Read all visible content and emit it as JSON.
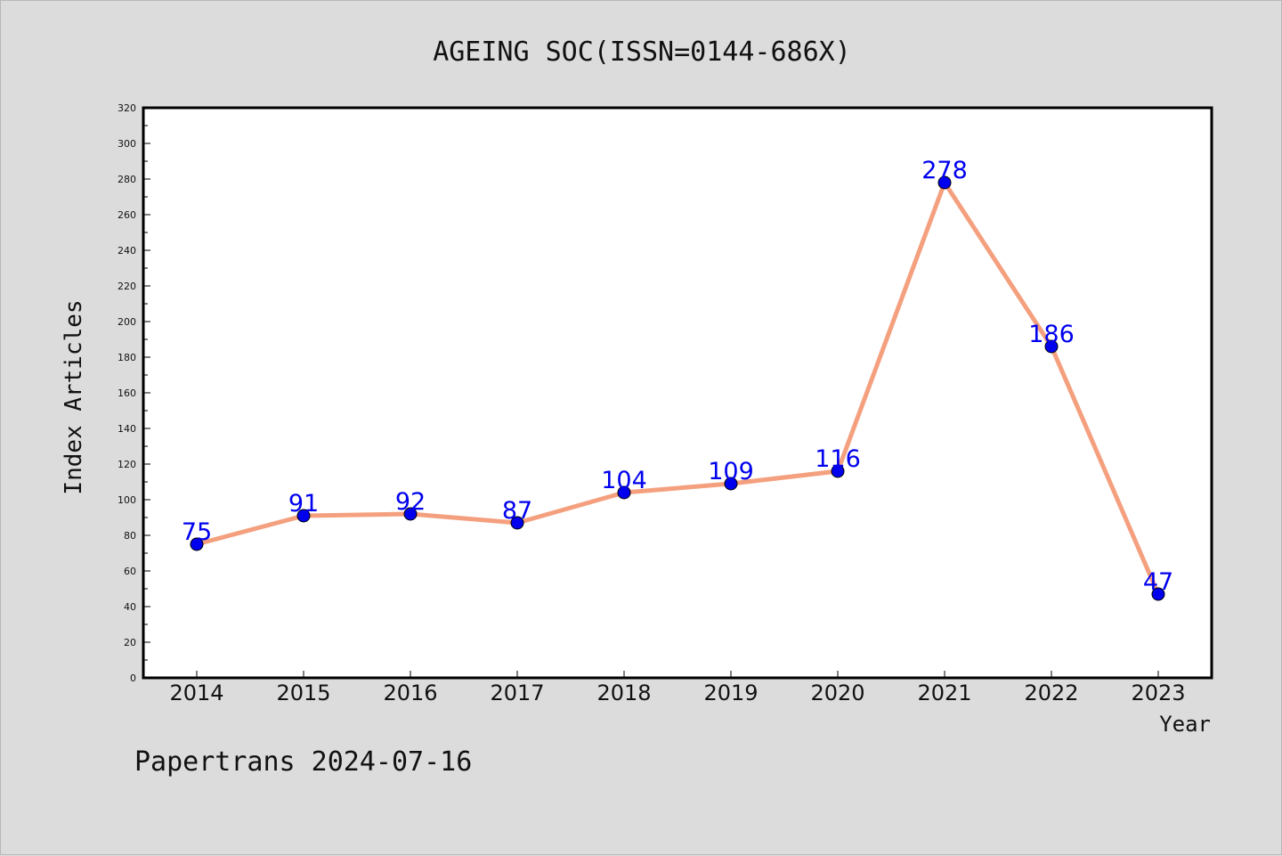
{
  "chart_data": {
    "type": "line",
    "title": "AGEING SOC(ISSN=0144-686X)",
    "xlabel": "Year",
    "ylabel": "Index Articles",
    "categories": [
      "2014",
      "2015",
      "2016",
      "2017",
      "2018",
      "2019",
      "2020",
      "2021",
      "2022",
      "2023"
    ],
    "values": [
      75,
      91,
      92,
      87,
      104,
      109,
      116,
      278,
      186,
      47
    ],
    "ylim": [
      0,
      320
    ],
    "yticks": [
      "0",
      "20",
      "40",
      "60",
      "80",
      "100",
      "120",
      "140",
      "160",
      "180",
      "200",
      "220",
      "240",
      "260",
      "280",
      "300",
      "320"
    ],
    "grid": false,
    "line_color": "#f4a07f",
    "marker_color": "#0000ee",
    "label_color": "#0000ee"
  },
  "footer": "Papertrans 2024-07-16"
}
